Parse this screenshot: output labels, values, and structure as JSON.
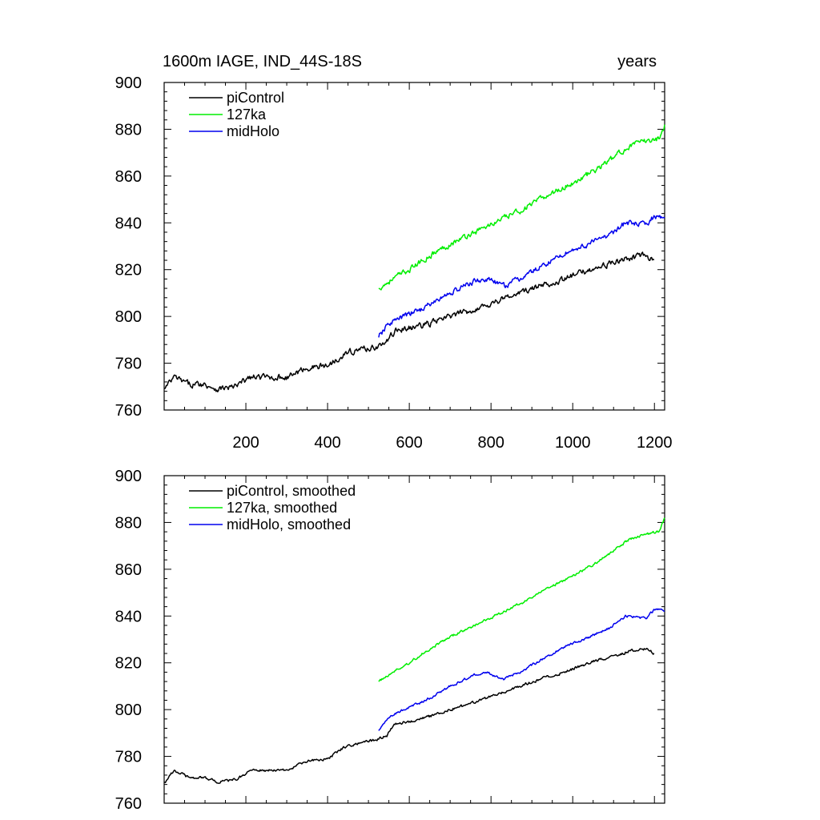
{
  "title_left": "1600m IAGE, IND_44S-18S",
  "title_right": "years",
  "colors": {
    "piControl": "#000000",
    "127ka": "#00ee00",
    "midHolo": "#0000ee",
    "frame": "#000000"
  },
  "chart_data": [
    {
      "type": "line",
      "xlim": [
        0,
        1225
      ],
      "ylim": [
        760,
        900
      ],
      "yticks": [
        760,
        780,
        800,
        820,
        840,
        860,
        880,
        900
      ],
      "xticks": [
        200,
        400,
        600,
        800,
        1000,
        1200
      ],
      "show_x_tick_labels": true,
      "legend_position": "top-left",
      "series": [
        {
          "key": "piControl",
          "name": "piControl",
          "x_start": 1,
          "x_end": 1200,
          "anchors": [
            [
              1,
              769
            ],
            [
              25,
              774
            ],
            [
              60,
              771
            ],
            [
              100,
              771
            ],
            [
              130,
              769
            ],
            [
              175,
              770
            ],
            [
              210,
              774
            ],
            [
              260,
              774
            ],
            [
              300,
              774
            ],
            [
              350,
              778
            ],
            [
              400,
              779
            ],
            [
              440,
              784
            ],
            [
              480,
              786
            ],
            [
              520,
              787
            ],
            [
              545,
              789
            ],
            [
              565,
              794
            ],
            [
              600,
              795
            ],
            [
              650,
              797
            ],
            [
              700,
              800
            ],
            [
              760,
              803
            ],
            [
              820,
              807
            ],
            [
              870,
              810
            ],
            [
              920,
              813
            ],
            [
              980,
              816
            ],
            [
              1040,
              820
            ],
            [
              1080,
              822
            ],
            [
              1140,
              825
            ],
            [
              1180,
              826
            ],
            [
              1200,
              824
            ]
          ],
          "noise": 1.1
        },
        {
          "key": "127ka",
          "name": "127ka",
          "x_start": 525,
          "x_end": 1225,
          "anchors": [
            [
              525,
              812
            ],
            [
              560,
              816
            ],
            [
              600,
              820
            ],
            [
              650,
              826
            ],
            [
              700,
              831
            ],
            [
              760,
              836
            ],
            [
              820,
              841
            ],
            [
              880,
              846
            ],
            [
              940,
              852
            ],
            [
              1000,
              857
            ],
            [
              1060,
              863
            ],
            [
              1100,
              868
            ],
            [
              1140,
              873
            ],
            [
              1180,
              875
            ],
            [
              1210,
              876
            ],
            [
              1225,
              882
            ]
          ],
          "noise": 1.0
        },
        {
          "key": "midHolo",
          "name": "midHolo",
          "x_start": 525,
          "x_end": 1225,
          "anchors": [
            [
              525,
              791
            ],
            [
              550,
              797
            ],
            [
              600,
              801
            ],
            [
              640,
              804
            ],
            [
              700,
              810
            ],
            [
              760,
              815
            ],
            [
              790,
              816
            ],
            [
              830,
              813
            ],
            [
              870,
              816
            ],
            [
              920,
              821
            ],
            [
              980,
              827
            ],
            [
              1040,
              831
            ],
            [
              1090,
              835
            ],
            [
              1130,
              840
            ],
            [
              1180,
              839
            ],
            [
              1200,
              843
            ],
            [
              1225,
              842
            ]
          ],
          "noise": 1.0
        }
      ],
      "legend": [
        "piControl",
        "127ka",
        "midHolo"
      ]
    },
    {
      "type": "line",
      "xlim": [
        0,
        1225
      ],
      "ylim": [
        760,
        900
      ],
      "yticks": [
        760,
        780,
        800,
        820,
        840,
        860,
        880,
        900
      ],
      "xticks": [
        200,
        400,
        600,
        800,
        1000,
        1200
      ],
      "show_x_tick_labels": false,
      "legend_position": "top-left",
      "series": [
        {
          "key": "piControl",
          "name": "piControl, smoothed",
          "x_start": 1,
          "x_end": 1200,
          "anchors": [
            [
              1,
              769
            ],
            [
              25,
              774
            ],
            [
              60,
              771
            ],
            [
              100,
              771
            ],
            [
              130,
              769
            ],
            [
              175,
              770
            ],
            [
              210,
              774
            ],
            [
              260,
              774
            ],
            [
              300,
              774
            ],
            [
              350,
              778
            ],
            [
              400,
              779
            ],
            [
              440,
              784
            ],
            [
              480,
              786
            ],
            [
              520,
              787
            ],
            [
              545,
              789
            ],
            [
              565,
              794
            ],
            [
              600,
              795
            ],
            [
              650,
              797
            ],
            [
              700,
              800
            ],
            [
              760,
              803
            ],
            [
              820,
              807
            ],
            [
              870,
              810
            ],
            [
              920,
              813
            ],
            [
              980,
              816
            ],
            [
              1040,
              820
            ],
            [
              1080,
              822
            ],
            [
              1140,
              825
            ],
            [
              1180,
              826
            ],
            [
              1200,
              824
            ]
          ],
          "noise": 0.5
        },
        {
          "key": "127ka",
          "name": "127ka, smoothed",
          "x_start": 525,
          "x_end": 1225,
          "anchors": [
            [
              525,
              812
            ],
            [
              560,
              816
            ],
            [
              600,
              820
            ],
            [
              650,
              826
            ],
            [
              700,
              831
            ],
            [
              760,
              836
            ],
            [
              820,
              841
            ],
            [
              880,
              846
            ],
            [
              940,
              852
            ],
            [
              1000,
              857
            ],
            [
              1060,
              863
            ],
            [
              1100,
              868
            ],
            [
              1140,
              873
            ],
            [
              1180,
              875
            ],
            [
              1210,
              876
            ],
            [
              1225,
              882
            ]
          ],
          "noise": 0.45
        },
        {
          "key": "midHolo",
          "name": "midHolo, smoothed",
          "x_start": 525,
          "x_end": 1225,
          "anchors": [
            [
              525,
              791
            ],
            [
              550,
              797
            ],
            [
              600,
              801
            ],
            [
              640,
              804
            ],
            [
              700,
              810
            ],
            [
              760,
              815
            ],
            [
              790,
              816
            ],
            [
              830,
              813
            ],
            [
              870,
              816
            ],
            [
              920,
              821
            ],
            [
              980,
              827
            ],
            [
              1040,
              831
            ],
            [
              1090,
              835
            ],
            [
              1130,
              840
            ],
            [
              1180,
              839
            ],
            [
              1200,
              843
            ],
            [
              1225,
              842
            ]
          ],
          "noise": 0.45
        }
      ],
      "legend": [
        "piControl, smoothed",
        "127ka, smoothed",
        "midHolo, smoothed"
      ]
    }
  ]
}
